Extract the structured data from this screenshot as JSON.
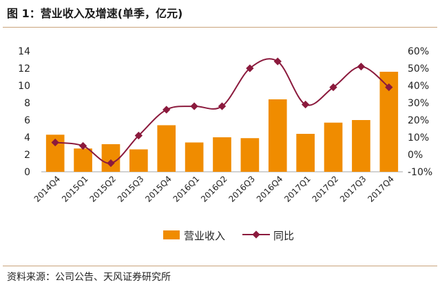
{
  "header": {
    "title": "图 1：营业收入及增速(单季，亿元)"
  },
  "footer": {
    "source": "资料来源：公司公告、天风证券研究所"
  },
  "colors": {
    "bar": "#F08C00",
    "line": "#8B1A3D",
    "rule": "#c9a27a",
    "axis": "#a6a6a6"
  },
  "chart_data": {
    "type": "bar+line",
    "title": "营业收入及增速(单季，亿元)",
    "categories": [
      "2014Q4",
      "2015Q1",
      "2015Q2",
      "2015Q3",
      "2015Q4",
      "2016Q1",
      "2016Q2",
      "2016Q3",
      "2016Q4",
      "2017Q1",
      "2017Q2",
      "2017Q3",
      "2017Q4"
    ],
    "series": [
      {
        "name": "营业收入",
        "type": "bar",
        "axis": "left",
        "values": [
          4.3,
          2.7,
          3.2,
          2.6,
          5.4,
          3.4,
          4.0,
          3.9,
          8.4,
          4.4,
          5.7,
          6.0,
          11.6
        ]
      },
      {
        "name": "同比",
        "type": "line",
        "axis": "right",
        "unit": "%",
        "values": [
          7,
          5,
          -5,
          11,
          26,
          28,
          28,
          50,
          54,
          29,
          39,
          51,
          39
        ]
      }
    ],
    "left_axis": {
      "ylim": [
        0,
        14
      ],
      "ticks": [
        "0",
        "2",
        "4",
        "6",
        "8",
        "10",
        "12",
        "14"
      ]
    },
    "right_axis": {
      "ylim": [
        -10,
        60
      ],
      "ticks": [
        "-10%",
        "0%",
        "10%",
        "20%",
        "30%",
        "40%",
        "50%",
        "60%"
      ]
    },
    "legend": {
      "position": "bottom",
      "items": [
        "营业收入",
        "同比"
      ]
    }
  }
}
